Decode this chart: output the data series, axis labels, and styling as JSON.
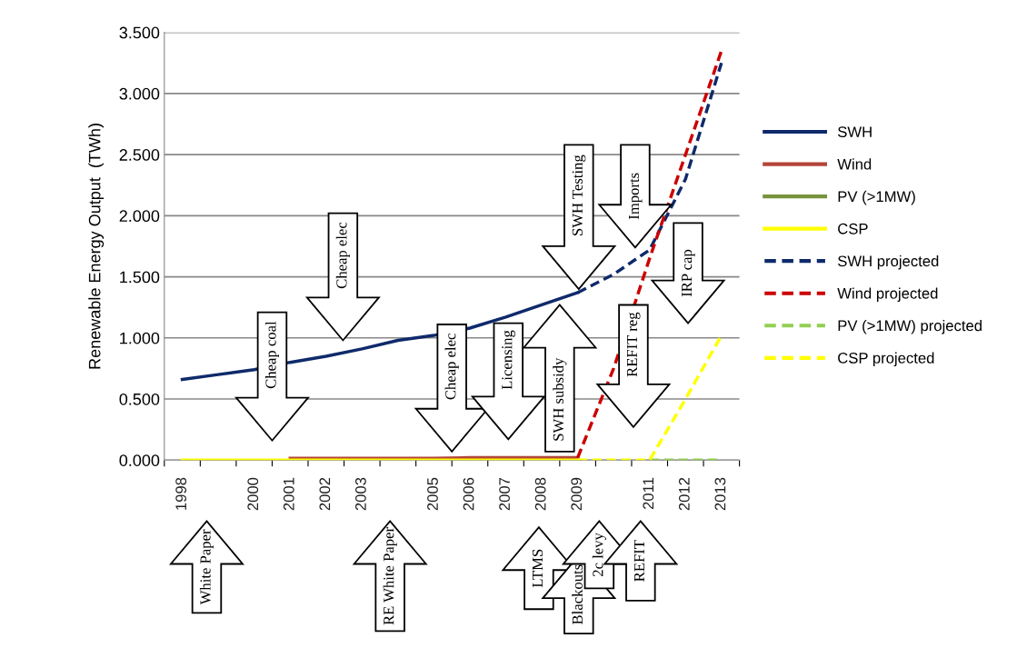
{
  "chart_data": {
    "type": "line",
    "ylabel": "Renewable Energy Output  (TWh)",
    "categories": [
      "1998",
      null,
      "2000",
      "2001",
      "2002",
      "2003",
      null,
      "2005",
      "2006",
      "2007",
      "2008",
      "2009",
      null,
      "2011",
      "2012",
      "2013"
    ],
    "ylim": [
      0,
      3.5
    ],
    "yticks": [
      {
        "value": 0,
        "label": "0.000"
      },
      {
        "value": 0.5,
        "label": "0.500"
      },
      {
        "value": 1,
        "label": "1.000"
      },
      {
        "value": 1.5,
        "label": "1.500"
      },
      {
        "value": 2,
        "label": "2.000"
      },
      {
        "value": 2.5,
        "label": "2.500"
      },
      {
        "value": 3,
        "label": "3.000"
      },
      {
        "value": 3.5,
        "label": "3.500"
      }
    ],
    "grid": "y",
    "legend": "right",
    "marker": "none",
    "series": [
      {
        "name": "SWH",
        "color": "#0f2a6b",
        "line_style": "solid",
        "values": [
          0.66,
          0.7,
          0.74,
          0.8,
          0.85,
          0.91,
          0.98,
          1.02,
          1.08,
          1.17,
          1.27,
          1.37,
          null,
          null,
          null,
          null
        ]
      },
      {
        "name": "Wind",
        "color": "#b5453a",
        "line_style": "solid",
        "values": [
          null,
          null,
          null,
          0.015,
          0.015,
          0.015,
          0.015,
          0.015,
          0.02,
          0.02,
          0.02,
          0.02,
          null,
          null,
          null,
          null
        ]
      },
      {
        "name": "PV (>1MW)",
        "color": "#77933c",
        "line_style": "solid",
        "values": [
          null,
          null,
          null,
          null,
          null,
          null,
          null,
          null,
          null,
          null,
          null,
          null,
          null,
          null,
          null,
          null
        ]
      },
      {
        "name": "CSP",
        "color": "#ffff00",
        "line_style": "solid",
        "values": [
          0,
          0,
          0,
          0,
          0,
          0,
          0,
          0,
          0,
          0,
          0,
          0,
          null,
          null,
          null,
          null
        ]
      },
      {
        "name": "SWH projected",
        "color": "#0f2a6b",
        "line_style": "dashed",
        "values": [
          null,
          null,
          null,
          null,
          null,
          null,
          null,
          null,
          null,
          null,
          null,
          1.37,
          1.52,
          1.72,
          2.3,
          3.25
        ]
      },
      {
        "name": "Wind projected",
        "color": "#cc0000",
        "line_style": "dashed",
        "values": [
          null,
          null,
          null,
          null,
          null,
          null,
          null,
          null,
          null,
          null,
          null,
          0.02,
          0.75,
          1.65,
          2.5,
          3.35
        ]
      },
      {
        "name": "PV (>1MW) projected",
        "color": "#92d050",
        "line_style": "dashed",
        "values": [
          null,
          null,
          null,
          null,
          null,
          null,
          null,
          null,
          null,
          null,
          null,
          null,
          null,
          0,
          0,
          0
        ]
      },
      {
        "name": "CSP projected",
        "color": "#ffff00",
        "line_style": "dashed",
        "values": [
          null,
          null,
          null,
          null,
          null,
          null,
          null,
          null,
          null,
          null,
          null,
          0,
          0,
          0,
          0.5,
          1.02
        ]
      }
    ],
    "annotations": [
      "White Paper",
      "Cheap coal",
      "Cheap elec",
      "RE White Paper",
      "Cheap elec",
      "Licensing",
      "SWH subsidy",
      "SWH Testing",
      "Imports",
      "IRP cap",
      "REFIT reg",
      "LTMS",
      "Blackouts",
      "2c levy",
      "REFIT"
    ]
  }
}
